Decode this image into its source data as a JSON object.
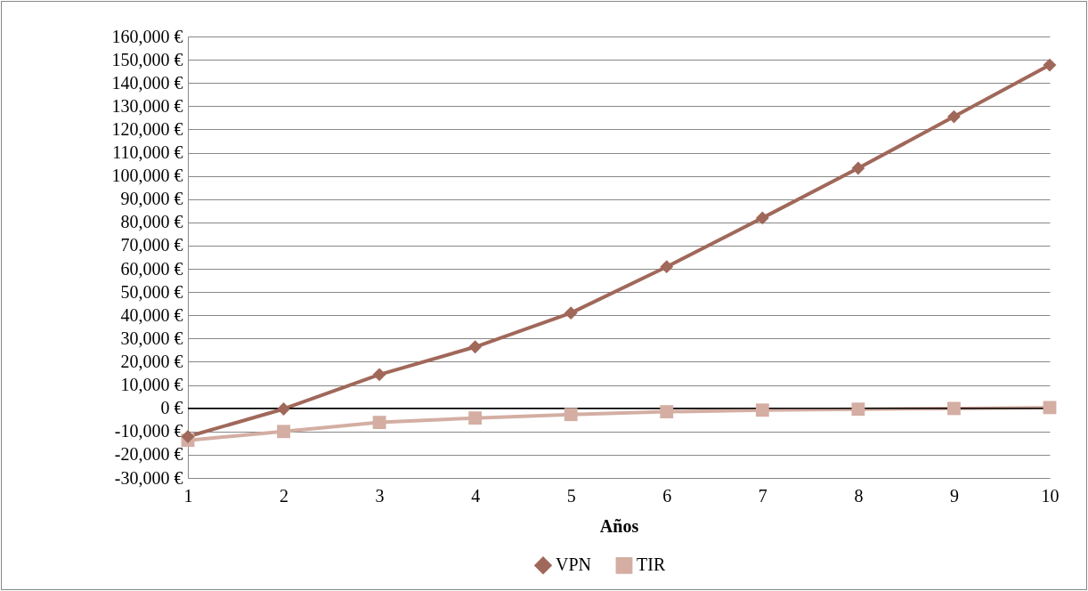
{
  "chart_data": {
    "type": "line",
    "xlabel": "Años",
    "categories": [
      "1",
      "2",
      "3",
      "4",
      "5",
      "6",
      "7",
      "8",
      "9",
      "10"
    ],
    "series": [
      {
        "name": "VPN",
        "color": "#a0685a",
        "marker": "diamond",
        "values": [
          -12200,
          -300,
          14500,
          26400,
          41000,
          60900,
          81900,
          103300,
          125500,
          147700
        ]
      },
      {
        "name": "TIR",
        "color": "#d4aea3",
        "marker": "square",
        "values": [
          -13800,
          -10000,
          -6100,
          -4200,
          -2700,
          -1500,
          -800,
          -400,
          -100,
          300
        ]
      }
    ],
    "ylim": [
      -30000,
      160000
    ],
    "yticks": [
      {
        "value": -30000,
        "label": "-30,000 €"
      },
      {
        "value": -20000,
        "label": "-20,000 €"
      },
      {
        "value": -10000,
        "label": "-10,000 €"
      },
      {
        "value": 0,
        "label": "0 €"
      },
      {
        "value": 10000,
        "label": "10,000 €"
      },
      {
        "value": 20000,
        "label": "20,000 €"
      },
      {
        "value": 30000,
        "label": "30,000 €"
      },
      {
        "value": 40000,
        "label": "40,000 €"
      },
      {
        "value": 50000,
        "label": "50,000 €"
      },
      {
        "value": 60000,
        "label": "60,000 €"
      },
      {
        "value": 70000,
        "label": "70,000 €"
      },
      {
        "value": 80000,
        "label": "80,000 €"
      },
      {
        "value": 90000,
        "label": "90,000 €"
      },
      {
        "value": 100000,
        "label": "100,000 €"
      },
      {
        "value": 110000,
        "label": "110,000 €"
      },
      {
        "value": 120000,
        "label": "120,000 €"
      },
      {
        "value": 130000,
        "label": "130,000 €"
      },
      {
        "value": 140000,
        "label": "140,000 €"
      },
      {
        "value": 150000,
        "label": "150,000 €"
      },
      {
        "value": 160000,
        "label": "160,000 €"
      }
    ],
    "ref_lines": [
      {
        "axis": "y",
        "value": 0,
        "color": "#000000"
      }
    ],
    "grid": "y",
    "legend": "bottom",
    "line_style": "solid"
  }
}
